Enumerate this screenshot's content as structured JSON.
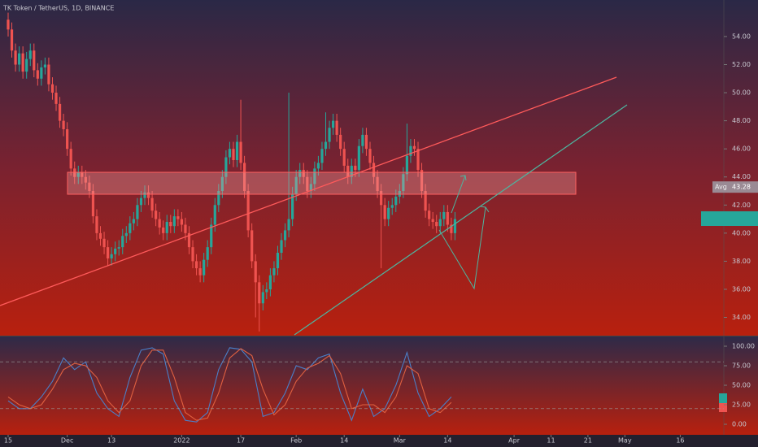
{
  "chart_data": [
    {
      "type": "candlestick",
      "title": "TK Token / TetherUS, 1D, BINANCE",
      "up_color": "#26a69a",
      "down_color": "#ef5350",
      "open": [
        55.2,
        54.5,
        53.0,
        52.0,
        52.8,
        51.5,
        52.4,
        53.0,
        51.6,
        51.0,
        51.8,
        52.0,
        50.6,
        50.0,
        49.2,
        48.0,
        47.4,
        46.0,
        44.6,
        44.0,
        44.3,
        44.0,
        43.6,
        43.0,
        41.2,
        40.0,
        39.6,
        39.0,
        38.2,
        38.5,
        38.9,
        39.0,
        39.8,
        40.0,
        40.7,
        41.0,
        42.0,
        42.5,
        42.9,
        42.5,
        41.6,
        41.0,
        40.4,
        40.0,
        40.8,
        40.5,
        41.2,
        41.0,
        40.6,
        40.0,
        39.0,
        38.0,
        37.5,
        37.0,
        38.1,
        39.0,
        40.6,
        42.0,
        43.0,
        44.0,
        45.4,
        46.0,
        45.2,
        46.5,
        45.0,
        43.0,
        40.2,
        38.0,
        36.5,
        35.0,
        35.8,
        36.0,
        37.0,
        37.5,
        38.6,
        39.5,
        40.2,
        41.0,
        42.8,
        44.0,
        44.5,
        44.0,
        43.0,
        43.5,
        44.6,
        45.0,
        46.0,
        46.5,
        47.5,
        48.0,
        47.0,
        46.0,
        44.8,
        44.0,
        44.8,
        44.5,
        46.2,
        47.0,
        46.0,
        45.0,
        44.0,
        43.0,
        42.0,
        41.0,
        41.8,
        42.0,
        42.6,
        43.0,
        44.2,
        45.5,
        46.2,
        46.0,
        44.5,
        43.0,
        41.6,
        41.0,
        40.8,
        40.5,
        41.0,
        41.5,
        40.6,
        40.0
      ],
      "high": [
        55.7,
        55.0,
        53.5,
        53.3,
        53.3,
        52.9,
        53.5,
        53.5,
        52.1,
        52.3,
        52.5,
        52.5,
        51.1,
        50.5,
        49.7,
        48.5,
        47.9,
        46.5,
        45.1,
        44.8,
        44.8,
        44.5,
        44.1,
        43.5,
        41.7,
        40.5,
        40.1,
        39.5,
        39.0,
        39.4,
        39.5,
        40.3,
        40.5,
        41.2,
        41.5,
        42.5,
        43.0,
        43.4,
        43.4,
        43.0,
        42.1,
        41.5,
        40.9,
        41.3,
        41.3,
        41.7,
        41.7,
        41.5,
        41.1,
        40.5,
        39.5,
        38.5,
        38.0,
        38.6,
        39.5,
        41.1,
        42.5,
        43.5,
        44.5,
        45.9,
        46.5,
        46.5,
        47.0,
        49.5,
        45.5,
        43.5,
        40.7,
        38.5,
        37.0,
        36.3,
        36.5,
        37.5,
        38.0,
        39.1,
        40.0,
        40.7,
        50.0,
        43.3,
        44.5,
        45.0,
        45.0,
        44.5,
        44.0,
        45.1,
        45.5,
        46.5,
        48.6,
        48.0,
        48.5,
        48.5,
        47.5,
        46.5,
        45.3,
        45.3,
        45.3,
        46.7,
        47.5,
        47.5,
        46.5,
        45.5,
        44.5,
        43.5,
        42.5,
        42.3,
        42.5,
        43.1,
        43.5,
        44.7,
        47.8,
        46.7,
        46.7,
        46.5,
        45.0,
        43.5,
        42.1,
        41.5,
        41.3,
        41.5,
        42.0,
        42.0,
        41.1,
        41.5
      ],
      "low": [
        54.0,
        52.5,
        51.5,
        51.5,
        51.0,
        51.0,
        51.9,
        51.1,
        50.5,
        50.5,
        51.3,
        50.1,
        49.5,
        48.7,
        47.5,
        46.9,
        45.5,
        44.1,
        43.5,
        43.5,
        43.5,
        43.1,
        42.5,
        40.7,
        39.5,
        39.1,
        38.5,
        37.7,
        37.7,
        38.0,
        38.4,
        38.5,
        39.3,
        39.5,
        40.2,
        40.5,
        41.5,
        42.0,
        42.0,
        41.1,
        40.5,
        39.9,
        39.5,
        39.5,
        40.0,
        40.0,
        40.5,
        40.1,
        39.5,
        38.5,
        37.5,
        37.0,
        36.5,
        36.5,
        37.6,
        38.5,
        40.1,
        41.5,
        42.5,
        43.5,
        44.9,
        44.7,
        44.7,
        44.5,
        42.5,
        39.7,
        37.5,
        34.0,
        33.0,
        34.5,
        35.3,
        35.5,
        36.5,
        37.0,
        38.1,
        39.0,
        39.7,
        40.5,
        42.3,
        43.5,
        43.5,
        42.5,
        42.5,
        43.0,
        44.1,
        44.5,
        45.5,
        46.0,
        47.0,
        46.5,
        45.5,
        44.3,
        43.5,
        43.5,
        44.0,
        44.0,
        45.7,
        45.5,
        44.5,
        43.5,
        42.5,
        37.5,
        40.5,
        40.5,
        41.3,
        41.5,
        42.1,
        42.5,
        43.7,
        45.0,
        45.5,
        44.0,
        42.5,
        41.1,
        40.5,
        40.3,
        40.0,
        40.0,
        40.5,
        40.1,
        39.5,
        39.5
      ],
      "close": [
        54.5,
        53.0,
        52.0,
        52.8,
        51.5,
        52.4,
        53.0,
        51.6,
        51.0,
        51.8,
        52.0,
        50.6,
        50.0,
        49.2,
        48.0,
        47.4,
        46.0,
        44.6,
        44.0,
        44.3,
        44.0,
        43.6,
        43.0,
        41.2,
        40.0,
        39.6,
        39.0,
        38.2,
        38.5,
        38.9,
        39.0,
        39.8,
        40.0,
        40.7,
        41.0,
        42.0,
        42.5,
        42.9,
        42.5,
        41.6,
        41.0,
        40.4,
        40.0,
        40.8,
        40.5,
        41.2,
        41.0,
        40.6,
        40.0,
        39.0,
        38.0,
        37.5,
        37.0,
        38.1,
        39.0,
        40.6,
        42.0,
        43.0,
        44.0,
        45.4,
        46.0,
        45.2,
        46.5,
        45.0,
        43.0,
        40.2,
        38.0,
        36.5,
        35.0,
        35.8,
        36.0,
        37.0,
        37.5,
        38.6,
        39.5,
        40.2,
        41.0,
        42.8,
        44.0,
        44.5,
        44.0,
        43.0,
        43.5,
        44.6,
        45.0,
        46.0,
        46.5,
        47.5,
        48.0,
        47.0,
        46.0,
        44.8,
        44.0,
        44.8,
        44.5,
        46.2,
        47.0,
        46.0,
        45.0,
        44.0,
        43.0,
        42.0,
        41.0,
        41.8,
        42.0,
        42.6,
        43.0,
        44.2,
        45.5,
        46.2,
        46.0,
        44.5,
        43.0,
        41.6,
        41.0,
        40.8,
        40.5,
        41.0,
        41.5,
        40.6,
        40.0,
        41.0
      ],
      "xlim": [
        -2.2,
        193.8
      ],
      "xticks": [
        {
          "value": 0,
          "label": "15"
        },
        {
          "value": 16,
          "label": "Dec"
        },
        {
          "value": 28,
          "label": "13"
        },
        {
          "value": 47,
          "label": "2022"
        },
        {
          "value": 63,
          "label": "17"
        },
        {
          "value": 78,
          "label": "Feb"
        },
        {
          "value": 91,
          "label": "14"
        },
        {
          "value": 106,
          "label": "Mar"
        },
        {
          "value": 119,
          "label": "14"
        },
        {
          "value": 137,
          "label": "Apr"
        },
        {
          "value": 147,
          "label": "11"
        },
        {
          "value": 157,
          "label": "21"
        },
        {
          "value": 167,
          "label": "May"
        },
        {
          "value": 182,
          "label": "16"
        }
      ],
      "ylim": [
        32.7,
        56.6
      ],
      "yticks": [
        {
          "value": 34,
          "label": "34.00"
        },
        {
          "value": 36,
          "label": "36.00"
        },
        {
          "value": 38,
          "label": "38.00"
        },
        {
          "value": 40,
          "label": "40.00"
        },
        {
          "value": 42,
          "label": "42.00"
        },
        {
          "value": 44,
          "label": "44.00"
        },
        {
          "value": 46,
          "label": "46.00"
        },
        {
          "value": 48,
          "label": "48.00"
        },
        {
          "value": 50,
          "label": "50.00"
        },
        {
          "value": 52,
          "label": "52.00"
        },
        {
          "value": 54,
          "label": "54.00"
        }
      ],
      "avg_label": "Avg",
      "avg_value": 43.28
    },
    {
      "type": "line",
      "x": [
        0,
        3,
        6,
        9,
        12,
        15,
        18,
        21,
        24,
        27,
        30,
        33,
        36,
        39,
        42,
        45,
        48,
        51,
        54,
        57,
        60,
        63,
        66,
        69,
        72,
        75,
        78,
        81,
        84,
        87,
        90,
        93,
        96,
        99,
        102,
        105,
        108,
        111,
        114,
        117,
        120
      ],
      "series": [
        {
          "color": "#4a7fc8",
          "values": [
            30,
            20,
            20,
            35,
            55,
            85,
            70,
            80,
            40,
            20,
            10,
            60,
            95,
            98,
            90,
            30,
            5,
            3,
            15,
            70,
            98,
            96,
            80,
            10,
            15,
            40,
            75,
            70,
            85,
            90,
            40,
            5,
            45,
            10,
            20,
            50,
            92,
            40,
            10,
            20,
            35
          ]
        },
        {
          "color": "#e06040",
          "values": [
            35,
            25,
            20,
            25,
            45,
            70,
            78,
            75,
            60,
            30,
            15,
            30,
            75,
            95,
            95,
            60,
            15,
            5,
            8,
            40,
            85,
            97,
            88,
            45,
            12,
            25,
            55,
            72,
            78,
            88,
            65,
            20,
            25,
            25,
            15,
            35,
            75,
            65,
            20,
            15,
            28
          ]
        }
      ],
      "xlim": [
        -2.2,
        193.8
      ],
      "ylim": [
        -13.5,
        112.5
      ],
      "yticks": [
        {
          "value": 0,
          "label": "0.00"
        },
        {
          "value": 25,
          "label": "25.00"
        },
        {
          "value": 50,
          "label": "50.00"
        },
        {
          "value": 75,
          "label": "75.00"
        },
        {
          "value": 100,
          "label": "100.00"
        }
      ],
      "bands": [
        20,
        80
      ]
    }
  ]
}
